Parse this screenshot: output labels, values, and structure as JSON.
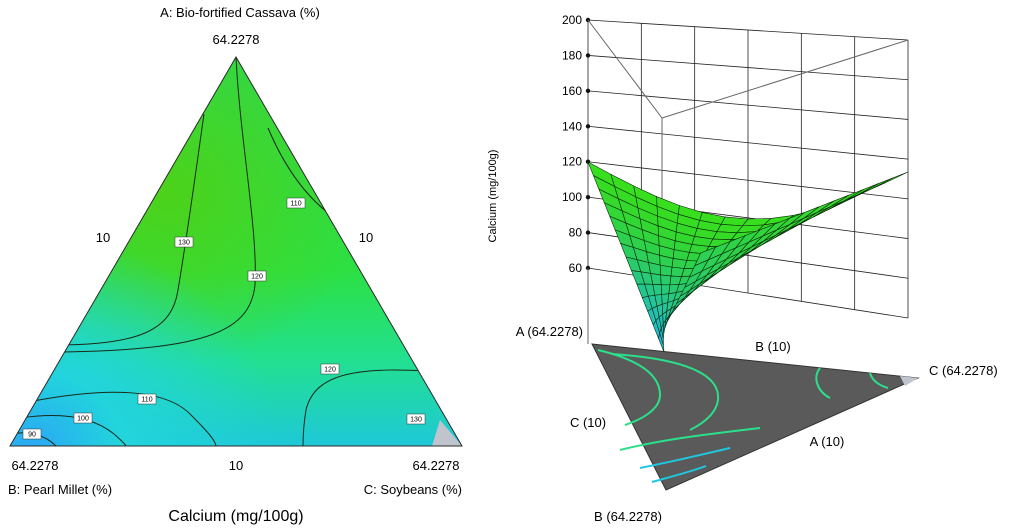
{
  "chart_data": [
    {
      "type": "ternary_contour",
      "title": "Calcium (mg/100g)",
      "vertices": {
        "top": {
          "name": "A: Bio-fortified Cassava (%)",
          "value": "64.2278"
        },
        "bottom_left": {
          "name": "B: Pearl Millet (%)",
          "value": "64.2278"
        },
        "bottom_right": {
          "name": "C: Soybeans (%)",
          "value": "64.2278"
        }
      },
      "edge_labels": {
        "left": "10",
        "right": "10",
        "bottom": "10"
      },
      "contour_levels": [
        "90",
        "100",
        "110",
        "120",
        "130"
      ],
      "contour_labels": [
        "130",
        "120",
        "110",
        "120",
        "130",
        "110",
        "100",
        "90"
      ],
      "colors": {
        "low": "#2fb8f0",
        "mid": "#22e67a",
        "high": "#3fd31a",
        "excluded": "#c0c4cc"
      }
    },
    {
      "type": "surface3d",
      "zlabel": "Calcium (mg/100g)",
      "zticks": [
        "60",
        "80",
        "100",
        "120",
        "140",
        "160",
        "180",
        "200"
      ],
      "zlim": [
        60,
        200
      ],
      "axis_labels": {
        "a_top": "A (64.2278)",
        "b_mid": "B (10)",
        "c_right": "C (64.2278)",
        "c_mid": "C (10)",
        "a_mid": "A (10)",
        "b_bottom": "B (64.2278)"
      },
      "colors": {
        "surface_low": "#3bc8f0",
        "surface_high": "#39e01e",
        "floor": "#5a5a5a",
        "grid": "#000000"
      }
    }
  ]
}
